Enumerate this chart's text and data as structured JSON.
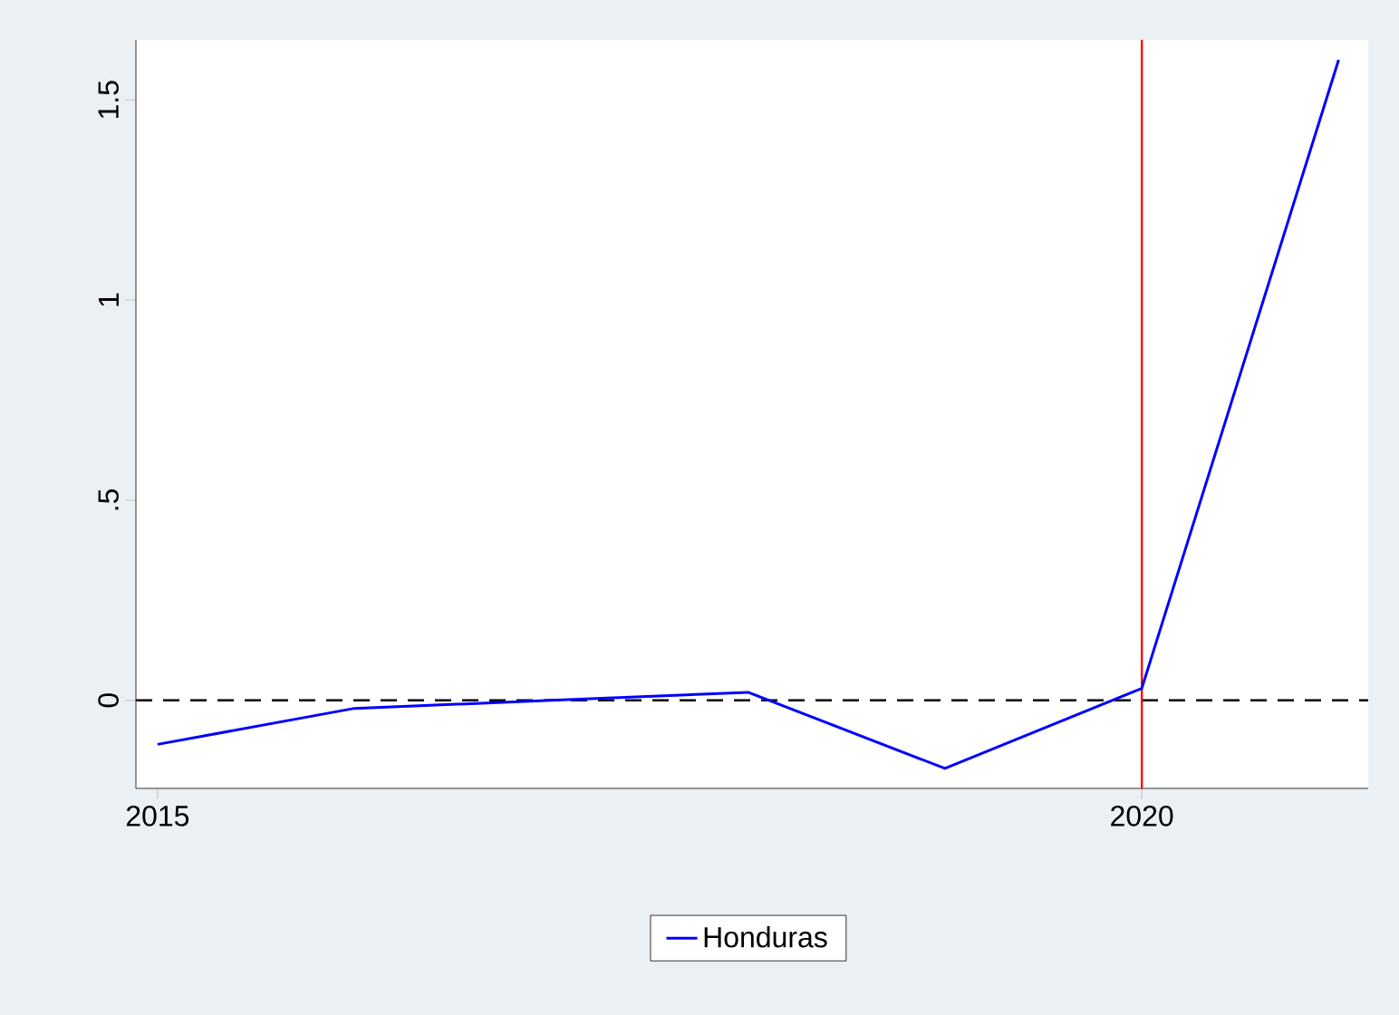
{
  "chart_data": {
    "type": "line",
    "x": [
      2015,
      2016,
      2017,
      2018,
      2019,
      2020,
      2021
    ],
    "series": [
      {
        "name": "Honduras",
        "color": "#0000ff",
        "values": [
          -0.11,
          -0.02,
          0.0,
          0.02,
          -0.17,
          0.03,
          1.6
        ]
      }
    ],
    "xlim": [
      2014.89,
      2021.15
    ],
    "ylim": [
      -0.22,
      1.65
    ],
    "xticks": [
      2015,
      2020
    ],
    "yticks": [
      0,
      {
        "value": 0.5,
        "label": ".5"
      },
      1,
      1.5
    ],
    "ref_lines": [
      {
        "axis": "y",
        "value": 0,
        "color": "#000000",
        "line_style": "dashed"
      },
      {
        "axis": "x",
        "value": 2020,
        "color": "#ff0000",
        "line_style": "solid"
      }
    ],
    "legend": "bottom",
    "grid": false,
    "marker": "none",
    "line_style": "solid"
  }
}
